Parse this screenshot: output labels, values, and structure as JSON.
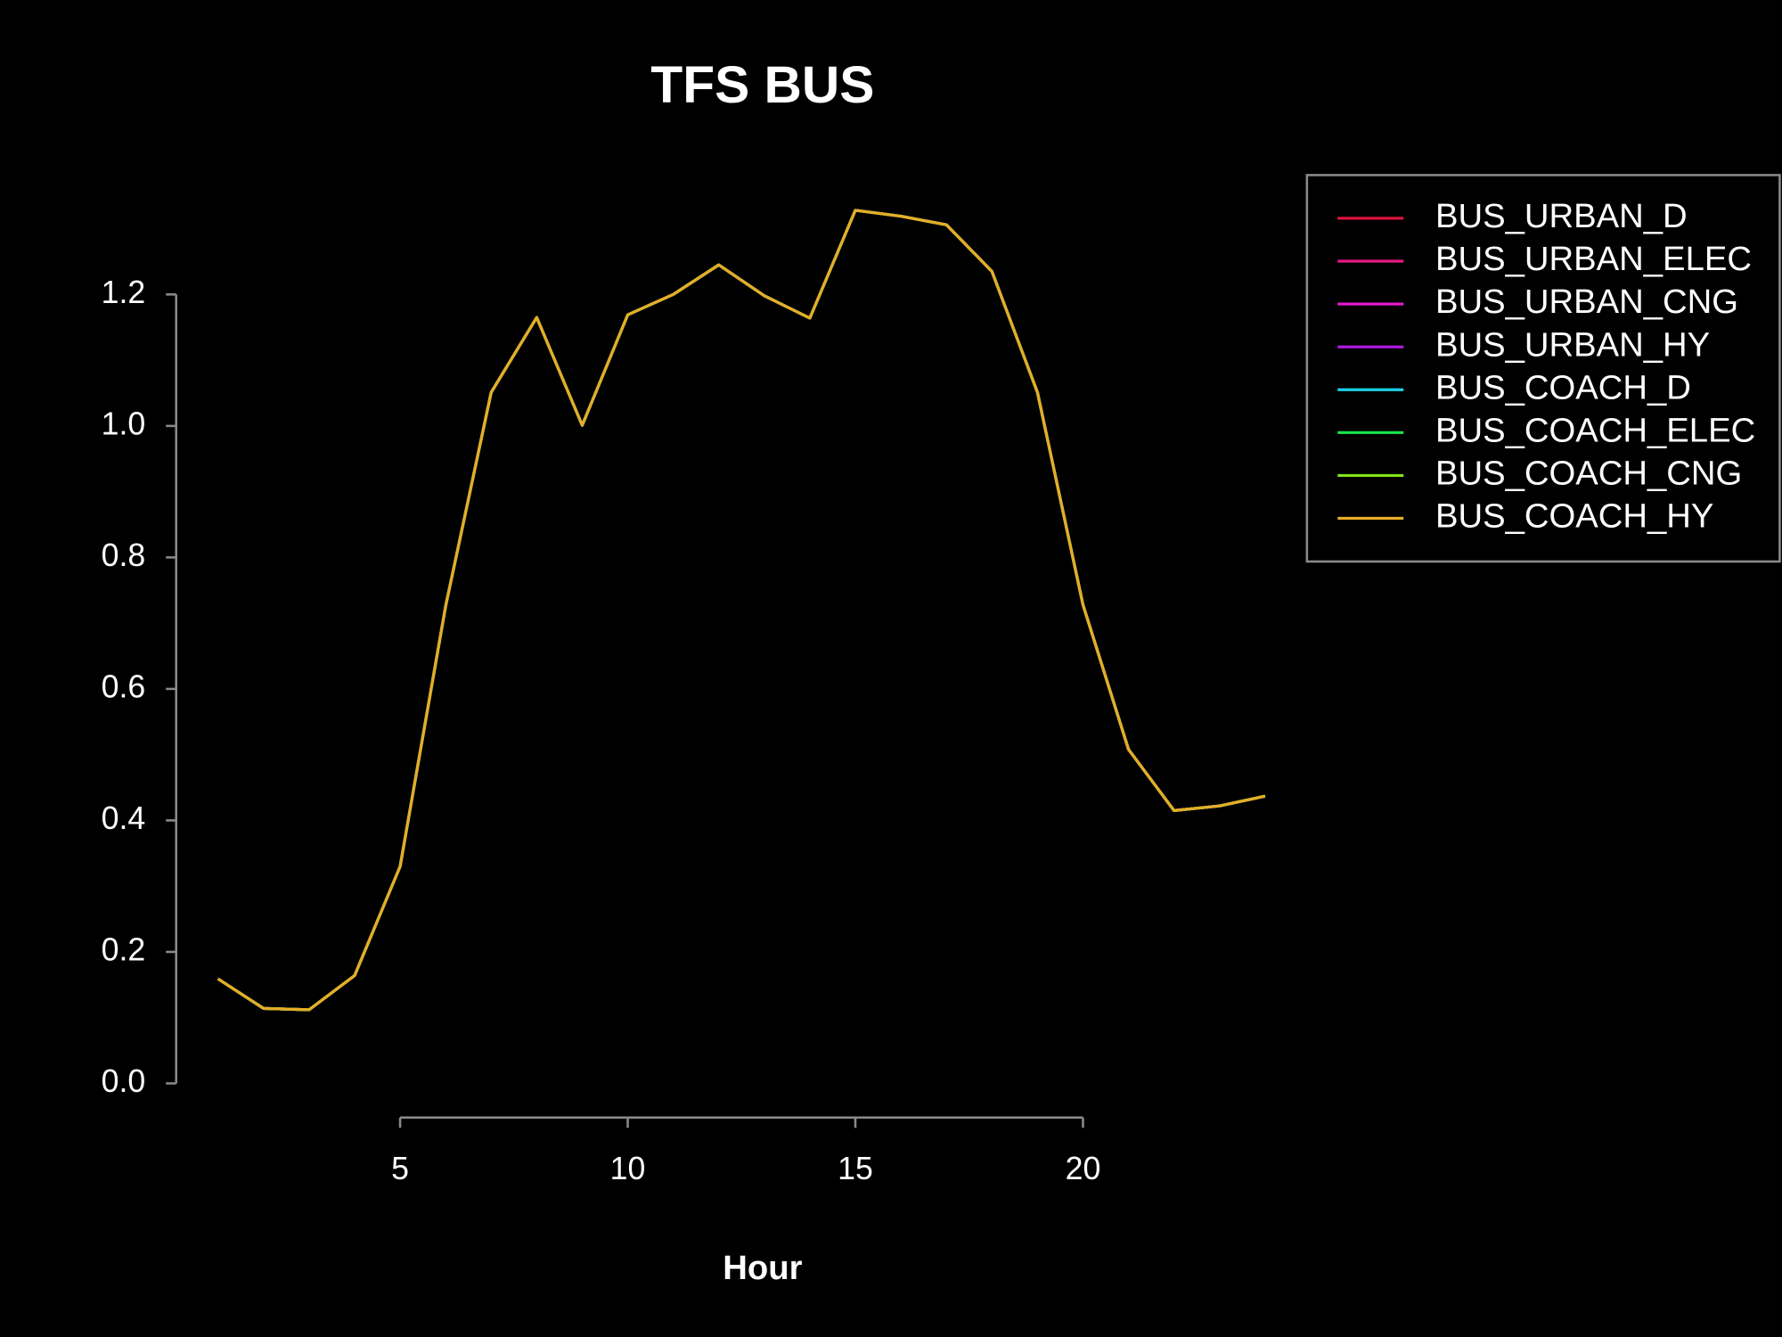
{
  "chart_data": {
    "type": "line",
    "title": "TFS BUS",
    "x_label": "Hour",
    "x": [
      1,
      2,
      3,
      4,
      5,
      6,
      7,
      8,
      9,
      10,
      11,
      12,
      13,
      14,
      15,
      16,
      17,
      18,
      19,
      20,
      21,
      22,
      23,
      24
    ],
    "series": [
      {
        "name": "BUS_URBAN_D",
        "color": "#dc143c",
        "values": [
          0.159,
          0.114,
          0.112,
          0.164,
          0.33,
          0.726,
          1.051,
          1.165,
          1.001,
          1.169,
          1.2,
          1.245,
          1.198,
          1.164,
          1.328,
          1.319,
          1.306,
          1.235,
          1.051,
          0.728,
          0.508,
          0.415,
          0.422,
          0.437
        ]
      },
      {
        "name": "BUS_URBAN_ELEC",
        "color": "#e6197f",
        "values": [
          0.159,
          0.114,
          0.112,
          0.164,
          0.33,
          0.726,
          1.051,
          1.165,
          1.001,
          1.169,
          1.2,
          1.245,
          1.198,
          1.164,
          1.328,
          1.319,
          1.306,
          1.235,
          1.051,
          0.728,
          0.508,
          0.415,
          0.422,
          0.437
        ]
      },
      {
        "name": "BUS_URBAN_CNG",
        "color": "#e61ad0",
        "values": [
          0.159,
          0.114,
          0.112,
          0.164,
          0.33,
          0.726,
          1.051,
          1.165,
          1.001,
          1.169,
          1.2,
          1.245,
          1.198,
          1.164,
          1.328,
          1.319,
          1.306,
          1.235,
          1.051,
          0.728,
          0.508,
          0.415,
          0.422,
          0.437
        ]
      },
      {
        "name": "BUS_URBAN_HY",
        "color": "#b319e6",
        "values": [
          0.159,
          0.114,
          0.112,
          0.164,
          0.33,
          0.726,
          1.051,
          1.165,
          1.001,
          1.169,
          1.2,
          1.245,
          1.198,
          1.164,
          1.328,
          1.319,
          1.306,
          1.235,
          1.051,
          0.728,
          0.508,
          0.415,
          0.422,
          0.437
        ]
      },
      {
        "name": "BUS_COACH_D",
        "color": "#19d0e6",
        "values": [
          0.159,
          0.114,
          0.112,
          0.164,
          0.33,
          0.726,
          1.051,
          1.165,
          1.001,
          1.169,
          1.2,
          1.245,
          1.198,
          1.164,
          1.328,
          1.319,
          1.306,
          1.235,
          1.051,
          0.728,
          0.508,
          0.415,
          0.422,
          0.437
        ]
      },
      {
        "name": "BUS_COACH_ELEC",
        "color": "#19e64a",
        "values": [
          0.159,
          0.114,
          0.112,
          0.164,
          0.33,
          0.726,
          1.051,
          1.165,
          1.001,
          1.169,
          1.2,
          1.245,
          1.198,
          1.164,
          1.328,
          1.319,
          1.306,
          1.235,
          1.051,
          0.728,
          0.508,
          0.415,
          0.422,
          0.437
        ]
      },
      {
        "name": "BUS_COACH_CNG",
        "color": "#80e619",
        "values": [
          0.159,
          0.114,
          0.112,
          0.164,
          0.33,
          0.726,
          1.051,
          1.165,
          1.001,
          1.169,
          1.2,
          1.245,
          1.198,
          1.164,
          1.328,
          1.319,
          1.306,
          1.235,
          1.051,
          0.728,
          0.508,
          0.415,
          0.422,
          0.437
        ]
      },
      {
        "name": "BUS_COACH_HY",
        "color": "#e6ac26",
        "values": [
          0.159,
          0.114,
          0.112,
          0.164,
          0.33,
          0.726,
          1.051,
          1.165,
          1.001,
          1.169,
          1.2,
          1.245,
          1.198,
          1.164,
          1.328,
          1.319,
          1.306,
          1.235,
          1.051,
          0.728,
          0.508,
          0.415,
          0.422,
          0.437
        ]
      }
    ],
    "xlim": [
      0.08,
      24.92
    ],
    "xticks": [
      5,
      10,
      15,
      20
    ],
    "ylim": [
      -0.052,
      1.385
    ],
    "yticks": [
      {
        "value": 0,
        "label": "0.0"
      },
      0.2,
      0.4,
      0.6,
      0.8,
      {
        "value": 1,
        "label": "1.0"
      },
      1.2
    ],
    "legend": "top-right"
  }
}
